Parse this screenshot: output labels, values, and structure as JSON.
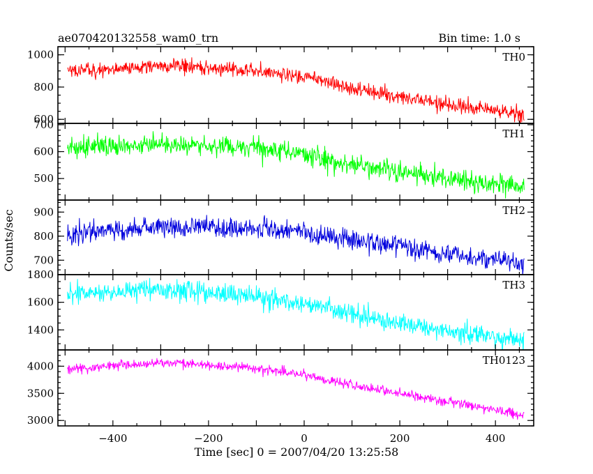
{
  "chart_data": {
    "type": "line",
    "title": "ae070420132558_wam0_trn",
    "subtitle": "Bin time: 1.0 s",
    "xlabel": "Time [sec] 0 = 2007/04/20 13:25:58",
    "ylabel": "Counts/sec",
    "xlim": [
      -515,
      480
    ],
    "xticks": [
      -400,
      -200,
      0,
      200,
      400
    ],
    "xtick_labels": [
      "−400",
      "−200",
      "0",
      "200",
      "400"
    ],
    "x_start": -495,
    "x_end": 460,
    "x_step": 1,
    "grid": false,
    "legend": "none",
    "panels": [
      {
        "name": "TH0",
        "color": "#ff0000",
        "ylim": [
          575,
          1050
        ],
        "yticks": [
          600,
          800,
          1000
        ],
        "ytick_labels": [
          "600",
          "800",
          "1000"
        ],
        "noise": 45,
        "trend": [
          [
            -495,
            900
          ],
          [
            -300,
            930
          ],
          [
            -100,
            900
          ],
          [
            0,
            860
          ],
          [
            50,
            840
          ],
          [
            100,
            790
          ],
          [
            200,
            740
          ],
          [
            300,
            690
          ],
          [
            400,
            655
          ],
          [
            460,
            625
          ]
        ]
      },
      {
        "name": "TH1",
        "color": "#00ff00",
        "ylim": [
          420,
          705
        ],
        "yticks": [
          500,
          600,
          700
        ],
        "ytick_labels": [
          "500",
          "600",
          "700"
        ],
        "noise": 38,
        "trend": [
          [
            -495,
            610
          ],
          [
            -300,
            625
          ],
          [
            -100,
            615
          ],
          [
            0,
            590
          ],
          [
            50,
            570
          ],
          [
            100,
            550
          ],
          [
            200,
            525
          ],
          [
            300,
            500
          ],
          [
            400,
            480
          ],
          [
            460,
            465
          ]
        ]
      },
      {
        "name": "TH2",
        "color": "#0000dd",
        "ylim": [
          640,
          950
        ],
        "yticks": [
          700,
          800,
          900
        ],
        "ytick_labels": [
          "700",
          "800",
          "900"
        ],
        "noise": 40,
        "trend": [
          [
            -495,
            810
          ],
          [
            -300,
            835
          ],
          [
            -200,
            840
          ],
          [
            -100,
            830
          ],
          [
            0,
            810
          ],
          [
            100,
            785
          ],
          [
            200,
            760
          ],
          [
            300,
            725
          ],
          [
            400,
            700
          ],
          [
            460,
            685
          ]
        ]
      },
      {
        "name": "TH3",
        "color": "#00ffff",
        "ylim": [
          1255,
          1800
        ],
        "yticks": [
          1400,
          1600,
          1800
        ],
        "ytick_labels": [
          "1400",
          "1600",
          "1800"
        ],
        "noise": 70,
        "trend": [
          [
            -495,
            1660
          ],
          [
            -300,
            1690
          ],
          [
            -200,
            1670
          ],
          [
            -100,
            1640
          ],
          [
            0,
            1590
          ],
          [
            100,
            1510
          ],
          [
            200,
            1450
          ],
          [
            300,
            1395
          ],
          [
            400,
            1350
          ],
          [
            460,
            1320
          ]
        ]
      },
      {
        "name": "TH0123",
        "color": "#ff00ff",
        "ylim": [
          2900,
          4300
        ],
        "yticks": [
          3000,
          3500,
          4000
        ],
        "ytick_labels": [
          "3000",
          "3500",
          "4000"
        ],
        "noise": 85,
        "trend": [
          [
            -495,
            3950
          ],
          [
            -300,
            4060
          ],
          [
            -200,
            4030
          ],
          [
            -100,
            3960
          ],
          [
            0,
            3840
          ],
          [
            100,
            3650
          ],
          [
            200,
            3500
          ],
          [
            300,
            3340
          ],
          [
            400,
            3200
          ],
          [
            460,
            3090
          ]
        ]
      }
    ]
  }
}
